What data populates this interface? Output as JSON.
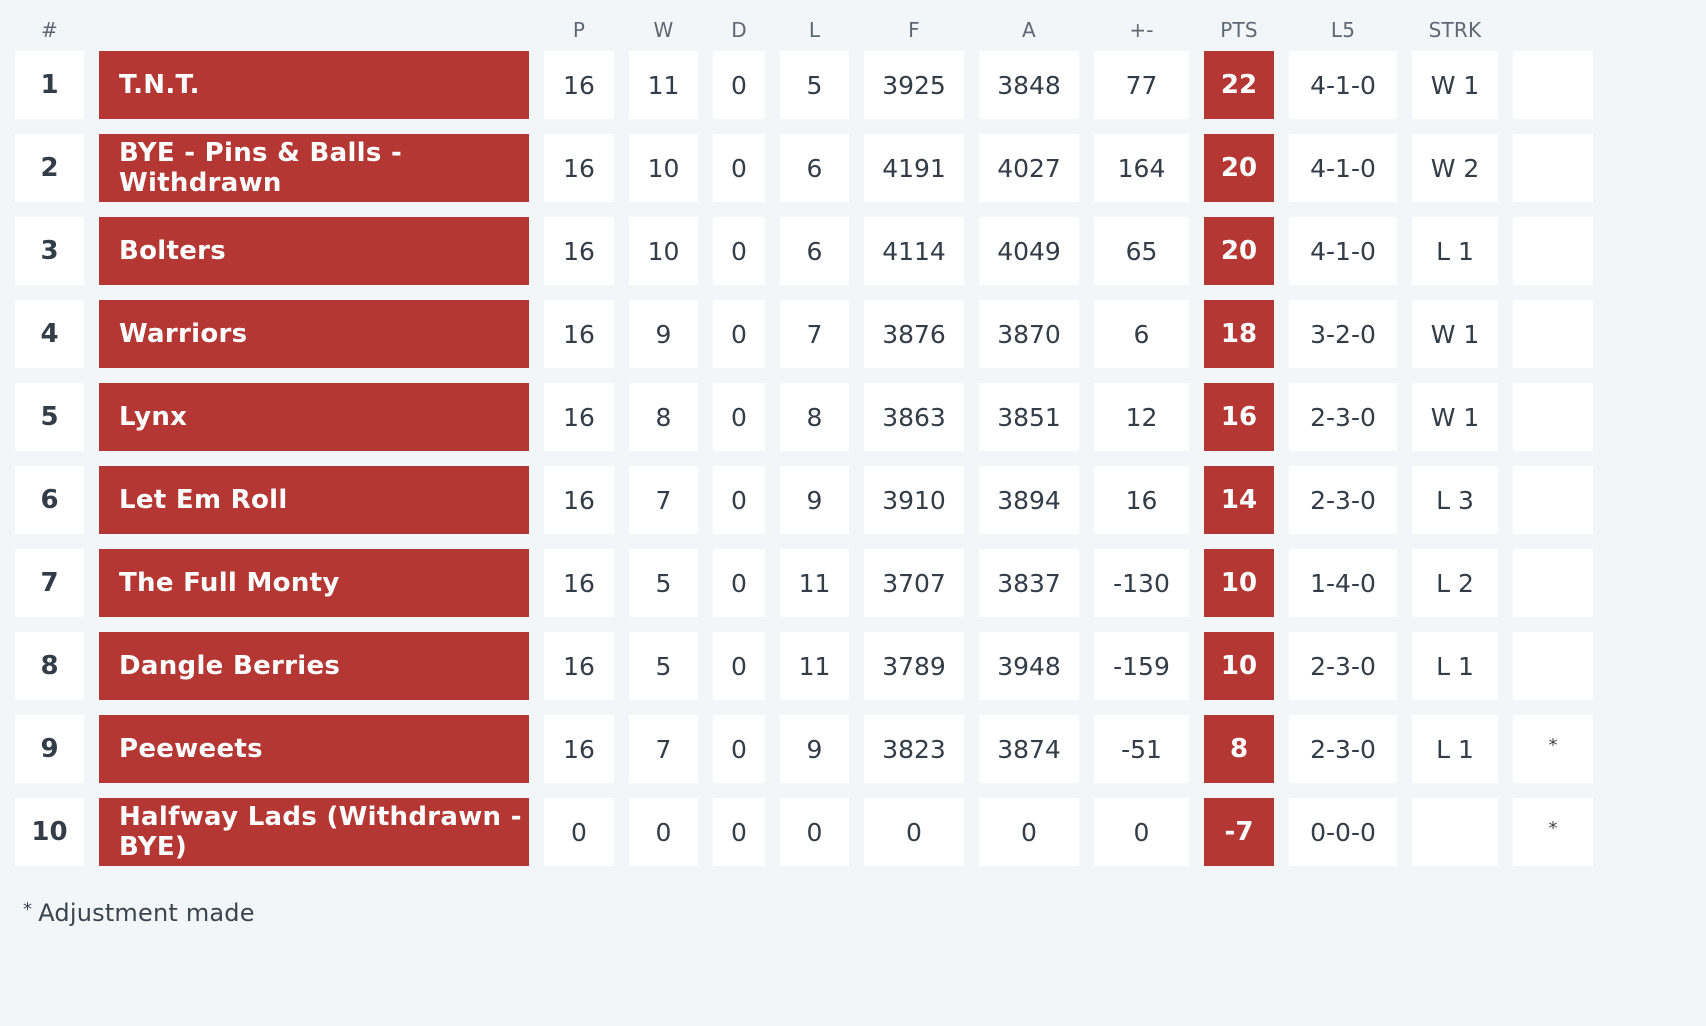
{
  "table": {
    "headers": {
      "rank": "#",
      "team": "",
      "played": "P",
      "won": "W",
      "drawn": "D",
      "lost": "L",
      "for": "F",
      "against": "A",
      "diff": "+-",
      "points": "PTS",
      "last5": "L5",
      "streak": "STRK",
      "adjustment": ""
    },
    "rows": [
      {
        "rank": "1",
        "team": "T.N.T.",
        "played": "16",
        "won": "11",
        "drawn": "0",
        "lost": "5",
        "for": "3925",
        "against": "3848",
        "diff": "77",
        "points": "22",
        "last5": "4-1-0",
        "streak": "W 1",
        "adjustment": ""
      },
      {
        "rank": "2",
        "team": "BYE - Pins & Balls - Withdrawn",
        "played": "16",
        "won": "10",
        "drawn": "0",
        "lost": "6",
        "for": "4191",
        "against": "4027",
        "diff": "164",
        "points": "20",
        "last5": "4-1-0",
        "streak": "W 2",
        "adjustment": ""
      },
      {
        "rank": "3",
        "team": "Bolters",
        "played": "16",
        "won": "10",
        "drawn": "0",
        "lost": "6",
        "for": "4114",
        "against": "4049",
        "diff": "65",
        "points": "20",
        "last5": "4-1-0",
        "streak": "L 1",
        "adjustment": ""
      },
      {
        "rank": "4",
        "team": "Warriors",
        "played": "16",
        "won": "9",
        "drawn": "0",
        "lost": "7",
        "for": "3876",
        "against": "3870",
        "diff": "6",
        "points": "18",
        "last5": "3-2-0",
        "streak": "W 1",
        "adjustment": ""
      },
      {
        "rank": "5",
        "team": "Lynx",
        "played": "16",
        "won": "8",
        "drawn": "0",
        "lost": "8",
        "for": "3863",
        "against": "3851",
        "diff": "12",
        "points": "16",
        "last5": "2-3-0",
        "streak": "W 1",
        "adjustment": ""
      },
      {
        "rank": "6",
        "team": "Let Em Roll",
        "played": "16",
        "won": "7",
        "drawn": "0",
        "lost": "9",
        "for": "3910",
        "against": "3894",
        "diff": "16",
        "points": "14",
        "last5": "2-3-0",
        "streak": "L 3",
        "adjustment": ""
      },
      {
        "rank": "7",
        "team": "The Full Monty",
        "played": "16",
        "won": "5",
        "drawn": "0",
        "lost": "11",
        "for": "3707",
        "against": "3837",
        "diff": "-130",
        "points": "10",
        "last5": "1-4-0",
        "streak": "L 2",
        "adjustment": ""
      },
      {
        "rank": "8",
        "team": "Dangle Berries",
        "played": "16",
        "won": "5",
        "drawn": "0",
        "lost": "11",
        "for": "3789",
        "against": "3948",
        "diff": "-159",
        "points": "10",
        "last5": "2-3-0",
        "streak": "L 1",
        "adjustment": ""
      },
      {
        "rank": "9",
        "team": "Peeweets",
        "played": "16",
        "won": "7",
        "drawn": "0",
        "lost": "9",
        "for": "3823",
        "against": "3874",
        "diff": "-51",
        "points": "8",
        "last5": "2-3-0",
        "streak": "L 1",
        "adjustment": "*"
      },
      {
        "rank": "10",
        "team": "Halfway Lads (Withdrawn - BYE)",
        "played": "0",
        "won": "0",
        "drawn": "0",
        "lost": "0",
        "for": "0",
        "against": "0",
        "diff": "0",
        "points": "-7",
        "last5": "0-0-0",
        "streak": "",
        "adjustment": "*"
      }
    ]
  },
  "footnote": {
    "marker": "*",
    "text": "Adjustment made"
  },
  "colors": {
    "background": "#f3f6f9",
    "cell": "#ffffff",
    "accent": "#b53733",
    "text": "#323d47"
  }
}
